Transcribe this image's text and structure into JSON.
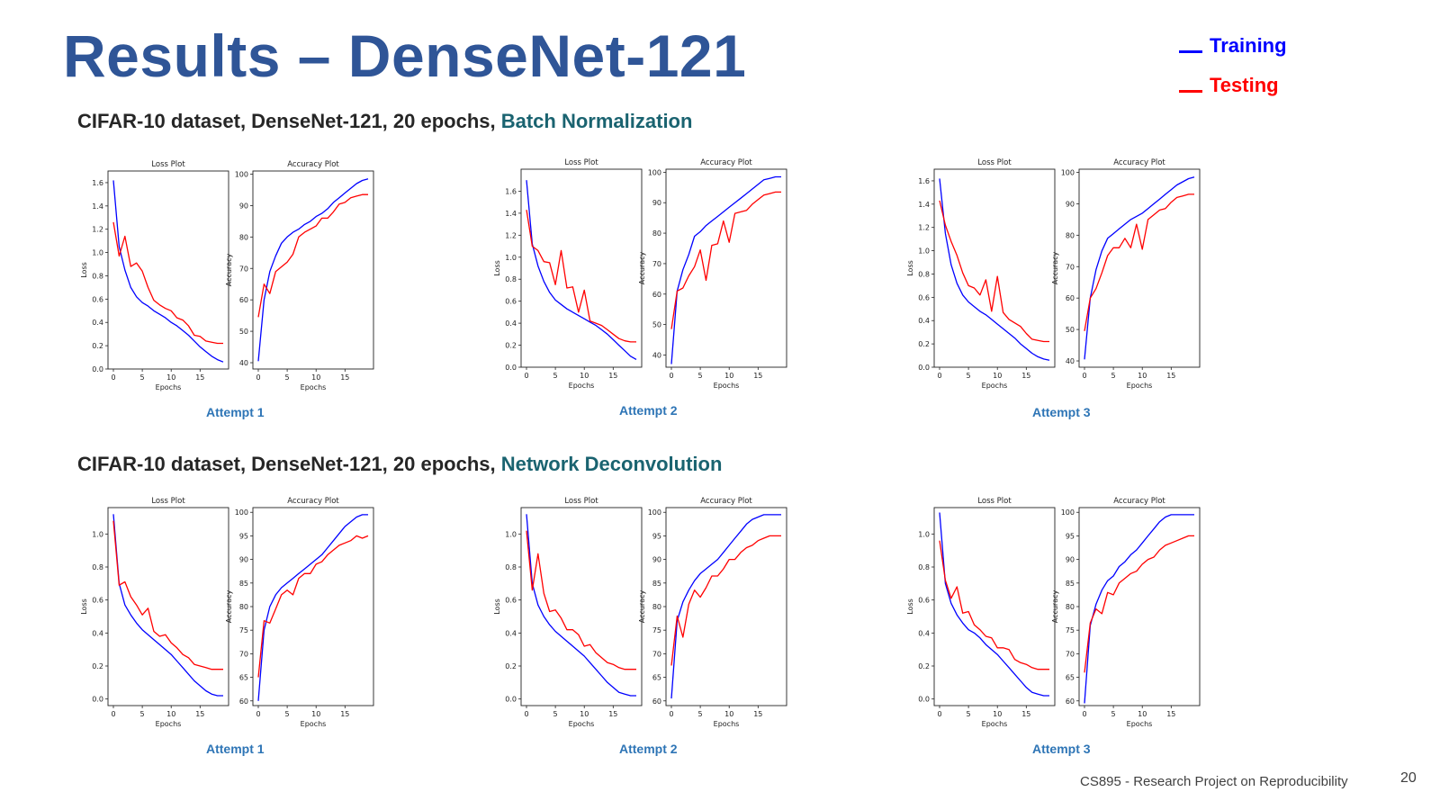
{
  "slide": {
    "title": "Results – DenseNet-121",
    "legend": [
      {
        "label": "Training",
        "color": "#0000ff"
      },
      {
        "label": "Testing",
        "color": "#ff0000"
      }
    ],
    "sections": [
      {
        "prefix": "CIFAR-10 dataset, DenseNet-121, 20 epochs, ",
        "highlight": "Batch Normalization"
      },
      {
        "prefix": "CIFAR-10 dataset, DenseNet-121, 20 epochs, ",
        "highlight": "Network Deconvolution"
      }
    ],
    "attempts": [
      "Attempt 1",
      "Attempt 2",
      "Attempt 3",
      "Attempt 1",
      "Attempt 2",
      "Attempt 3"
    ],
    "footer": "CS895 - Research Project on Reproducibility",
    "page_number": "20"
  },
  "chart_data": [
    {
      "type": "line",
      "panel": "bn-attempt1-loss",
      "title": "Loss Plot",
      "xlabel": "Epochs",
      "ylabel": "Loss",
      "xlim": [
        0,
        19
      ],
      "ylim": [
        0,
        1.7
      ],
      "xticks": [
        0,
        5,
        10,
        15
      ],
      "yticks": [
        "0.0",
        "0.2",
        "0.4",
        "0.6",
        "0.8",
        "1.0",
        "1.2",
        "1.4",
        "1.6"
      ],
      "series": [
        {
          "name": "Training",
          "color": "#0000ff",
          "values": [
            1.62,
            1.05,
            0.85,
            0.7,
            0.62,
            0.57,
            0.54,
            0.5,
            0.47,
            0.44,
            0.4,
            0.37,
            0.33,
            0.29,
            0.24,
            0.19,
            0.15,
            0.11,
            0.08,
            0.06
          ]
        },
        {
          "name": "Testing",
          "color": "#ff0000",
          "values": [
            1.26,
            0.97,
            1.14,
            0.88,
            0.91,
            0.84,
            0.7,
            0.59,
            0.55,
            0.52,
            0.5,
            0.44,
            0.42,
            0.37,
            0.29,
            0.28,
            0.24,
            0.23,
            0.22,
            0.22
          ]
        }
      ]
    },
    {
      "type": "line",
      "panel": "bn-attempt1-acc",
      "title": "Accuracy Plot",
      "xlabel": "Epochs",
      "ylabel": "Accuracy",
      "xlim": [
        0,
        19
      ],
      "ylim": [
        38,
        101
      ],
      "xticks": [
        0,
        5,
        10,
        15
      ],
      "yticks": [
        "40",
        "50",
        "60",
        "70",
        "80",
        "90",
        "100"
      ],
      "series": [
        {
          "name": "Training",
          "color": "#0000ff",
          "values": [
            40.5,
            60,
            69,
            74,
            78,
            80,
            81.5,
            82.5,
            84,
            85,
            86.5,
            87.5,
            89,
            91,
            92.5,
            94,
            95.5,
            97,
            98,
            98.5
          ]
        },
        {
          "name": "Testing",
          "color": "#ff0000",
          "values": [
            54.5,
            65,
            62,
            69,
            70.5,
            72,
            74.5,
            80,
            81.5,
            82.5,
            83.5,
            86,
            86,
            88,
            90.5,
            91,
            92.5,
            93,
            93.5,
            93.5
          ]
        }
      ]
    },
    {
      "type": "line",
      "panel": "bn-attempt2-loss",
      "title": "Loss Plot",
      "xlabel": "Epochs",
      "ylabel": "Loss",
      "xlim": [
        0,
        19
      ],
      "ylim": [
        0,
        1.8
      ],
      "xticks": [
        0,
        5,
        10,
        15
      ],
      "yticks": [
        "0.0",
        "0.2",
        "0.4",
        "0.6",
        "0.8",
        "1.0",
        "1.2",
        "1.4",
        "1.6"
      ],
      "series": [
        {
          "name": "Training",
          "color": "#0000ff",
          "values": [
            1.7,
            1.12,
            0.92,
            0.78,
            0.68,
            0.61,
            0.57,
            0.53,
            0.5,
            0.47,
            0.44,
            0.41,
            0.38,
            0.34,
            0.3,
            0.25,
            0.2,
            0.15,
            0.1,
            0.07
          ]
        },
        {
          "name": "Testing",
          "color": "#ff0000",
          "values": [
            1.43,
            1.1,
            1.06,
            0.96,
            0.95,
            0.75,
            1.06,
            0.72,
            0.73,
            0.5,
            0.7,
            0.42,
            0.4,
            0.38,
            0.34,
            0.3,
            0.26,
            0.24,
            0.23,
            0.23
          ]
        }
      ]
    },
    {
      "type": "line",
      "panel": "bn-attempt2-acc",
      "title": "Accuracy Plot",
      "xlabel": "Epochs",
      "ylabel": "Accuracy",
      "xlim": [
        0,
        19
      ],
      "ylim": [
        36,
        101
      ],
      "xticks": [
        0,
        5,
        10,
        15
      ],
      "yticks": [
        "40",
        "50",
        "60",
        "70",
        "80",
        "90",
        "100"
      ],
      "series": [
        {
          "name": "Training",
          "color": "#0000ff",
          "values": [
            37,
            61,
            68,
            73,
            79,
            80.5,
            82.5,
            84,
            85.5,
            87,
            88.5,
            90,
            91.5,
            93,
            94.5,
            96,
            97.5,
            98,
            98.5,
            98.5
          ]
        },
        {
          "name": "Testing",
          "color": "#ff0000",
          "values": [
            48.5,
            61,
            62,
            66,
            69,
            74.5,
            64.5,
            76,
            76.5,
            84,
            77,
            86.5,
            87,
            87.5,
            89.5,
            91,
            92.5,
            93,
            93.5,
            93.5
          ]
        }
      ]
    },
    {
      "type": "line",
      "panel": "bn-attempt3-loss",
      "title": "Loss Plot",
      "xlabel": "Epochs",
      "ylabel": "Loss",
      "xlim": [
        0,
        19
      ],
      "ylim": [
        0,
        1.7
      ],
      "xticks": [
        0,
        5,
        10,
        15
      ],
      "yticks": [
        "0.0",
        "0.2",
        "0.4",
        "0.6",
        "0.8",
        "1.0",
        "1.2",
        "1.4",
        "1.6"
      ],
      "series": [
        {
          "name": "Training",
          "color": "#0000ff",
          "values": [
            1.62,
            1.15,
            0.88,
            0.72,
            0.62,
            0.56,
            0.52,
            0.48,
            0.45,
            0.41,
            0.37,
            0.33,
            0.29,
            0.25,
            0.2,
            0.16,
            0.12,
            0.09,
            0.07,
            0.06
          ]
        },
        {
          "name": "Testing",
          "color": "#ff0000",
          "values": [
            1.43,
            1.22,
            1.08,
            0.96,
            0.81,
            0.7,
            0.68,
            0.62,
            0.75,
            0.48,
            0.78,
            0.47,
            0.41,
            0.38,
            0.35,
            0.29,
            0.24,
            0.23,
            0.22,
            0.22
          ]
        }
      ]
    },
    {
      "type": "line",
      "panel": "bn-attempt3-acc",
      "title": "Accuracy Plot",
      "xlabel": "Epochs",
      "ylabel": "Accuracy",
      "xlim": [
        0,
        19
      ],
      "ylim": [
        38,
        101
      ],
      "xticks": [
        0,
        5,
        10,
        15
      ],
      "yticks": [
        "40",
        "50",
        "60",
        "70",
        "80",
        "90",
        "100"
      ],
      "series": [
        {
          "name": "Training",
          "color": "#0000ff",
          "values": [
            40.5,
            60,
            69,
            75,
            79,
            80.5,
            82,
            83.5,
            85,
            86,
            87,
            88.5,
            90,
            91.5,
            93,
            94.5,
            96,
            97,
            98,
            98.5
          ]
        },
        {
          "name": "Testing",
          "color": "#ff0000",
          "values": [
            49.5,
            60,
            63,
            68,
            73.5,
            76,
            76,
            79,
            76,
            83.5,
            75.5,
            85,
            86.5,
            88,
            88.5,
            90.5,
            92,
            92.5,
            93,
            93
          ]
        }
      ]
    },
    {
      "type": "line",
      "panel": "nd-attempt1-loss",
      "title": "Loss Plot",
      "xlabel": "Epochs",
      "ylabel": "Loss",
      "xlim": [
        0,
        19
      ],
      "ylim": [
        -0.04,
        1.16
      ],
      "xticks": [
        0,
        5,
        10,
        15
      ],
      "yticks": [
        "0.0",
        "0.2",
        "0.4",
        "0.6",
        "0.8",
        "1.0"
      ],
      "series": [
        {
          "name": "Training",
          "color": "#0000ff",
          "values": [
            1.12,
            0.7,
            0.57,
            0.51,
            0.46,
            0.42,
            0.39,
            0.36,
            0.33,
            0.3,
            0.27,
            0.23,
            0.19,
            0.15,
            0.11,
            0.08,
            0.05,
            0.03,
            0.02,
            0.02
          ]
        },
        {
          "name": "Testing",
          "color": "#ff0000",
          "values": [
            1.08,
            0.69,
            0.71,
            0.62,
            0.57,
            0.51,
            0.55,
            0.41,
            0.38,
            0.39,
            0.34,
            0.31,
            0.27,
            0.25,
            0.21,
            0.2,
            0.19,
            0.18,
            0.18,
            0.18
          ]
        }
      ]
    },
    {
      "type": "line",
      "panel": "nd-attempt1-acc",
      "title": "Accuracy Plot",
      "xlabel": "Epochs",
      "ylabel": "Accuracy",
      "xlim": [
        0,
        19
      ],
      "ylim": [
        59,
        101
      ],
      "xticks": [
        0,
        5,
        10,
        15
      ],
      "yticks": [
        "60",
        "65",
        "70",
        "75",
        "80",
        "85",
        "90",
        "95",
        "100"
      ],
      "series": [
        {
          "name": "Training",
          "color": "#0000ff",
          "values": [
            60,
            75,
            80,
            82.5,
            84,
            85,
            86,
            87,
            88,
            89,
            90,
            91,
            92.5,
            94,
            95.5,
            97,
            98,
            99,
            99.5,
            99.5
          ]
        },
        {
          "name": "Testing",
          "color": "#ff0000",
          "values": [
            65,
            77,
            76.5,
            79.5,
            82.5,
            83.5,
            82.5,
            86,
            87,
            87,
            89,
            89.5,
            91,
            92,
            93,
            93.5,
            94,
            95,
            94.5,
            95
          ]
        }
      ]
    },
    {
      "type": "line",
      "panel": "nd-attempt2-loss",
      "title": "Loss Plot",
      "xlabel": "Epochs",
      "ylabel": "Loss",
      "xlim": [
        0,
        19
      ],
      "ylim": [
        -0.04,
        1.16
      ],
      "xticks": [
        0,
        5,
        10,
        15
      ],
      "yticks": [
        "0.0",
        "0.2",
        "0.4",
        "0.6",
        "0.8",
        "1.0"
      ],
      "series": [
        {
          "name": "Training",
          "color": "#0000ff",
          "values": [
            1.12,
            0.7,
            0.57,
            0.5,
            0.45,
            0.41,
            0.38,
            0.35,
            0.32,
            0.29,
            0.26,
            0.22,
            0.18,
            0.14,
            0.1,
            0.07,
            0.04,
            0.03,
            0.02,
            0.02
          ]
        },
        {
          "name": "Testing",
          "color": "#ff0000",
          "values": [
            1.02,
            0.66,
            0.88,
            0.64,
            0.53,
            0.54,
            0.49,
            0.42,
            0.42,
            0.39,
            0.32,
            0.33,
            0.28,
            0.25,
            0.22,
            0.21,
            0.19,
            0.18,
            0.18,
            0.18
          ]
        }
      ]
    },
    {
      "type": "line",
      "panel": "nd-attempt2-acc",
      "title": "Accuracy Plot",
      "xlabel": "Epochs",
      "ylabel": "Accuracy",
      "xlim": [
        0,
        19
      ],
      "ylim": [
        59,
        101
      ],
      "xticks": [
        0,
        5,
        10,
        15
      ],
      "yticks": [
        "60",
        "65",
        "70",
        "75",
        "80",
        "85",
        "90",
        "95",
        "100"
      ],
      "series": [
        {
          "name": "Training",
          "color": "#0000ff",
          "values": [
            60.5,
            77,
            81,
            83.5,
            85.5,
            87,
            88,
            89,
            90,
            91.5,
            93,
            94.5,
            96,
            97.5,
            98.5,
            99,
            99.5,
            99.5,
            99.5,
            99.5
          ]
        },
        {
          "name": "Testing",
          "color": "#ff0000",
          "values": [
            67.5,
            78,
            73.5,
            80.5,
            83.5,
            82,
            84,
            86.5,
            86.5,
            88,
            90,
            90,
            91.5,
            92.5,
            93,
            94,
            94.5,
            95,
            95,
            95
          ]
        }
      ]
    },
    {
      "type": "line",
      "panel": "nd-attempt3-loss",
      "title": "Loss Plot",
      "xlabel": "Epochs",
      "ylabel": "Loss",
      "xlim": [
        0,
        19
      ],
      "ylim": [
        -0.04,
        1.16
      ],
      "xticks": [
        0,
        5,
        10,
        15
      ],
      "yticks": [
        "0.0",
        "0.2",
        "0.4",
        "0.6",
        "0.8",
        "1.0"
      ],
      "series": [
        {
          "name": "Training",
          "color": "#0000ff",
          "values": [
            1.13,
            0.7,
            0.58,
            0.51,
            0.46,
            0.42,
            0.4,
            0.37,
            0.33,
            0.3,
            0.27,
            0.23,
            0.19,
            0.15,
            0.11,
            0.07,
            0.04,
            0.03,
            0.02,
            0.02
          ]
        },
        {
          "name": "Testing",
          "color": "#ff0000",
          "values": [
            0.96,
            0.72,
            0.61,
            0.68,
            0.52,
            0.53,
            0.45,
            0.42,
            0.38,
            0.37,
            0.31,
            0.31,
            0.3,
            0.24,
            0.22,
            0.21,
            0.19,
            0.18,
            0.18,
            0.18
          ]
        }
      ]
    },
    {
      "type": "line",
      "panel": "nd-attempt3-acc",
      "title": "Accuracy Plot",
      "xlabel": "Epochs",
      "ylabel": "Accuracy",
      "xlim": [
        0,
        19
      ],
      "ylim": [
        59,
        101
      ],
      "xticks": [
        0,
        5,
        10,
        15
      ],
      "yticks": [
        "60",
        "65",
        "70",
        "75",
        "80",
        "85",
        "90",
        "95",
        "100"
      ],
      "series": [
        {
          "name": "Training",
          "color": "#0000ff",
          "values": [
            59.5,
            76,
            80.5,
            83.5,
            85.5,
            86.5,
            88.5,
            89.5,
            91,
            92,
            93.5,
            95,
            96.5,
            98,
            99,
            99.5,
            99.5,
            99.5,
            99.5,
            99.5
          ]
        },
        {
          "name": "Testing",
          "color": "#ff0000",
          "values": [
            66,
            76.5,
            79.5,
            78.5,
            83,
            82.5,
            85,
            86,
            87,
            87.5,
            89,
            90,
            90.5,
            92,
            93,
            93.5,
            94,
            94.5,
            95,
            95
          ]
        }
      ]
    }
  ]
}
